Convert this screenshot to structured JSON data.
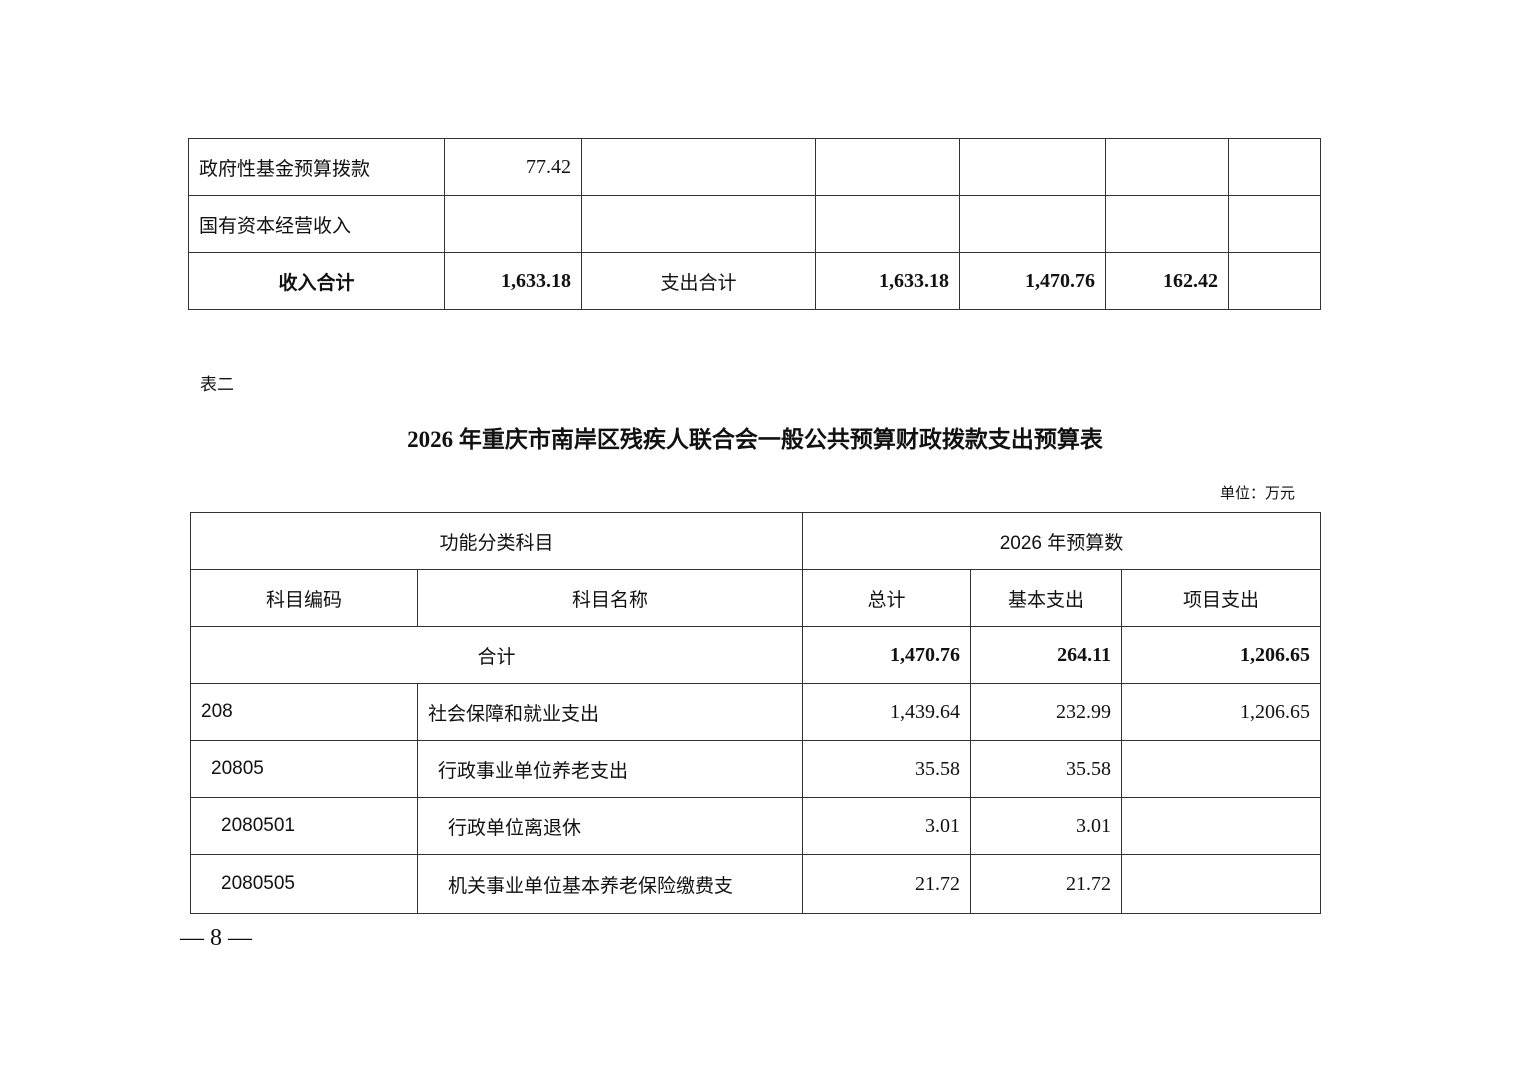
{
  "table1": {
    "rows": [
      {
        "label": "政府性基金预算拨款",
        "income": "77.42",
        "exp_label": "",
        "total": "",
        "basic": "",
        "project": "",
        "extra": ""
      },
      {
        "label": "国有资本经营收入",
        "income": "",
        "exp_label": "",
        "total": "",
        "basic": "",
        "project": "",
        "extra": ""
      },
      {
        "label": "收入合计",
        "income": "1,633.18",
        "exp_label": "支出合计",
        "total": "1,633.18",
        "basic": "1,470.76",
        "project": "162.42",
        "extra": ""
      }
    ]
  },
  "table2": {
    "caption": "表二",
    "title": "2026 年重庆市南岸区残疾人联合会一般公共预算财政拨款支出预算表",
    "unit": "单位：万元",
    "header": {
      "group1": "功能分类科目",
      "group2": "2026 年预算数",
      "code": "科目编码",
      "name": "科目名称",
      "total": "总计",
      "basic": "基本支出",
      "project": "项目支出"
    },
    "sum_row": {
      "label": "合计",
      "total": "1,470.76",
      "basic": "264.11",
      "project": "1,206.65"
    },
    "rows": [
      {
        "code": "208",
        "name": "社会保障和就业支出",
        "total": "1,439.64",
        "basic": "232.99",
        "project": "1,206.65"
      },
      {
        "code": "20805",
        "name": "行政事业单位养老支出",
        "total": "35.58",
        "basic": "35.58",
        "project": ""
      },
      {
        "code": "2080501",
        "name": "行政单位离退休",
        "total": "3.01",
        "basic": "3.01",
        "project": ""
      },
      {
        "code": "2080505",
        "name": "机关事业单位基本养老保险缴费支",
        "total": "21.72",
        "basic": "21.72",
        "project": ""
      }
    ]
  },
  "page_number": "— 8 —"
}
